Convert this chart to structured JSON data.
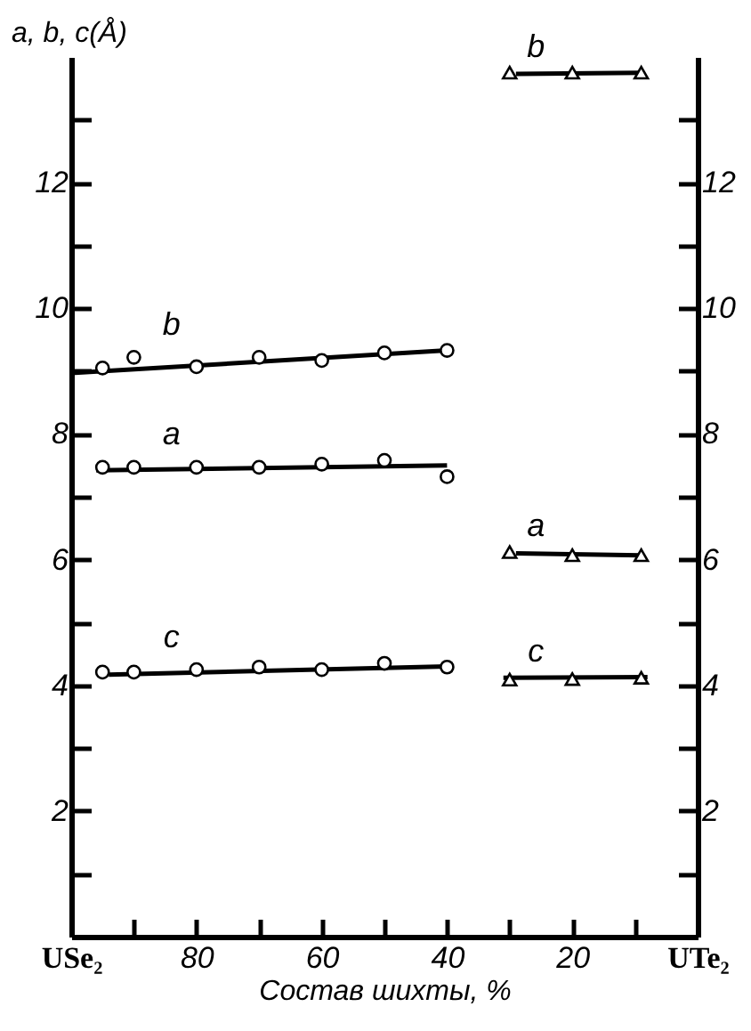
{
  "chart_data": {
    "type": "scatter",
    "xlabel": "Состав шихты, %",
    "ylabel": "a, b, c(Å)",
    "xlim": [
      100,
      0
    ],
    "xticks": [
      {
        "value": 100,
        "label": "USe₂"
      },
      {
        "value": 90,
        "label": null
      },
      80,
      {
        "value": 70,
        "label": null
      },
      60,
      {
        "value": 50,
        "label": null
      },
      40,
      {
        "value": 30,
        "label": null
      },
      20,
      {
        "value": 10,
        "label": null
      },
      {
        "value": 0,
        "label": "UTe₂"
      }
    ],
    "ylim": [
      0,
      14
    ],
    "yticks": [
      {
        "value": 1,
        "label": null
      },
      2,
      {
        "value": 3,
        "label": null
      },
      4,
      {
        "value": 5,
        "label": null
      },
      6,
      {
        "value": 7,
        "label": null
      },
      8,
      {
        "value": 9,
        "label": null
      },
      10,
      {
        "value": 11,
        "label": null
      },
      12,
      {
        "value": 13,
        "label": null
      }
    ],
    "y2lim": [
      0,
      14
    ],
    "y2ticks": [
      {
        "value": 1,
        "label": null
      },
      2,
      {
        "value": 3,
        "label": null
      },
      4,
      {
        "value": 5,
        "label": null
      },
      6,
      {
        "value": 7,
        "label": null
      },
      8,
      {
        "value": 9,
        "label": null
      },
      10,
      {
        "value": 11,
        "label": null
      },
      12,
      {
        "value": 13,
        "label": null
      }
    ],
    "grid": false,
    "series": [
      {
        "type": "line",
        "color": "#000000",
        "marker": "none",
        "x": [
          100,
          40
        ],
        "values": [
          8.97,
          9.33
        ]
      },
      {
        "type": "line",
        "color": "#000000",
        "marker": "none",
        "x": [
          96,
          40
        ],
        "values": [
          7.42,
          7.5
        ]
      },
      {
        "type": "line",
        "color": "#000000",
        "marker": "none",
        "x": [
          94,
          40
        ],
        "values": [
          4.17,
          4.3
        ]
      },
      {
        "type": "line",
        "color": "#000000",
        "marker": "none",
        "x": [
          29,
          9
        ],
        "values": [
          13.73,
          13.75
        ]
      },
      {
        "type": "line",
        "color": "#000000",
        "marker": "none",
        "x": [
          29,
          9
        ],
        "values": [
          6.1,
          6.07
        ]
      },
      {
        "type": "line",
        "color": "#000000",
        "marker": "none",
        "x": [
          31,
          8
        ],
        "values": [
          4.12,
          4.13
        ]
      },
      {
        "name": "b",
        "color": "#000000",
        "marker": "circle",
        "x": [
          95,
          90,
          80,
          70,
          60,
          50,
          40
        ],
        "values": [
          9.05,
          9.22,
          9.07,
          9.22,
          9.17,
          9.29,
          9.33
        ]
      },
      {
        "name": "a",
        "color": "#000000",
        "marker": "circle",
        "x": [
          95,
          90,
          80,
          70,
          60,
          50,
          40
        ],
        "values": [
          7.47,
          7.47,
          7.47,
          7.47,
          7.52,
          7.58,
          7.32
        ]
      },
      {
        "name": "c",
        "color": "#000000",
        "marker": "circle",
        "x": [
          95,
          90,
          80,
          70,
          60,
          50,
          40
        ],
        "values": [
          4.21,
          4.21,
          4.25,
          4.29,
          4.25,
          4.35,
          4.29
        ]
      },
      {
        "name": "b",
        "color": "#000000",
        "marker": "triangle",
        "x": [
          30,
          20,
          9
        ],
        "values": [
          13.75,
          13.75,
          13.75
        ]
      },
      {
        "name": "a",
        "color": "#000000",
        "marker": "triangle",
        "x": [
          30,
          20,
          9
        ],
        "values": [
          6.12,
          6.07,
          6.07
        ]
      },
      {
        "name": "c",
        "color": "#000000",
        "marker": "triangle",
        "x": [
          30,
          20,
          9
        ],
        "values": [
          4.09,
          4.1,
          4.12
        ]
      }
    ]
  }
}
